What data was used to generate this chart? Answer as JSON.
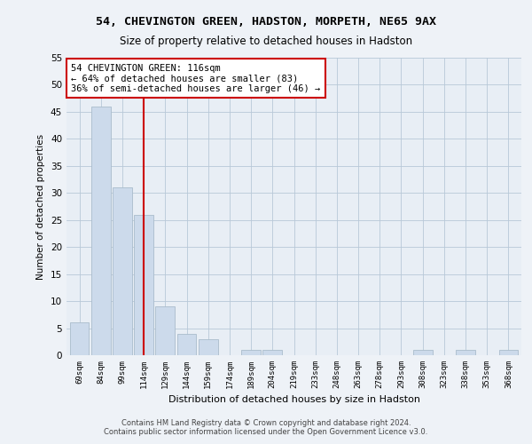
{
  "title1": "54, CHEVINGTON GREEN, HADSTON, MORPETH, NE65 9AX",
  "title2": "Size of property relative to detached houses in Hadston",
  "xlabel": "Distribution of detached houses by size in Hadston",
  "ylabel": "Number of detached properties",
  "categories": [
    "69sqm",
    "84sqm",
    "99sqm",
    "114sqm",
    "129sqm",
    "144sqm",
    "159sqm",
    "174sqm",
    "189sqm",
    "204sqm",
    "219sqm",
    "233sqm",
    "248sqm",
    "263sqm",
    "278sqm",
    "293sqm",
    "308sqm",
    "323sqm",
    "338sqm",
    "353sqm",
    "368sqm"
  ],
  "values": [
    6,
    46,
    31,
    26,
    9,
    4,
    3,
    0,
    1,
    1,
    0,
    0,
    0,
    0,
    0,
    0,
    1,
    0,
    1,
    0,
    1
  ],
  "bar_color": "#ccdaeb",
  "bar_edge_color": "#aabccc",
  "vline_x_index": 3,
  "vline_color": "#cc0000",
  "annotation_text": "54 CHEVINGTON GREEN: 116sqm\n← 64% of detached houses are smaller (83)\n36% of semi-detached houses are larger (46) →",
  "annotation_box_color": "#ffffff",
  "annotation_box_edge": "#cc0000",
  "ylim": [
    0,
    55
  ],
  "yticks": [
    0,
    5,
    10,
    15,
    20,
    25,
    30,
    35,
    40,
    45,
    50,
    55
  ],
  "footer1": "Contains HM Land Registry data © Crown copyright and database right 2024.",
  "footer2": "Contains public sector information licensed under the Open Government Licence v3.0.",
  "bg_color": "#eef2f7",
  "plot_bg_color": "#e8eef5"
}
